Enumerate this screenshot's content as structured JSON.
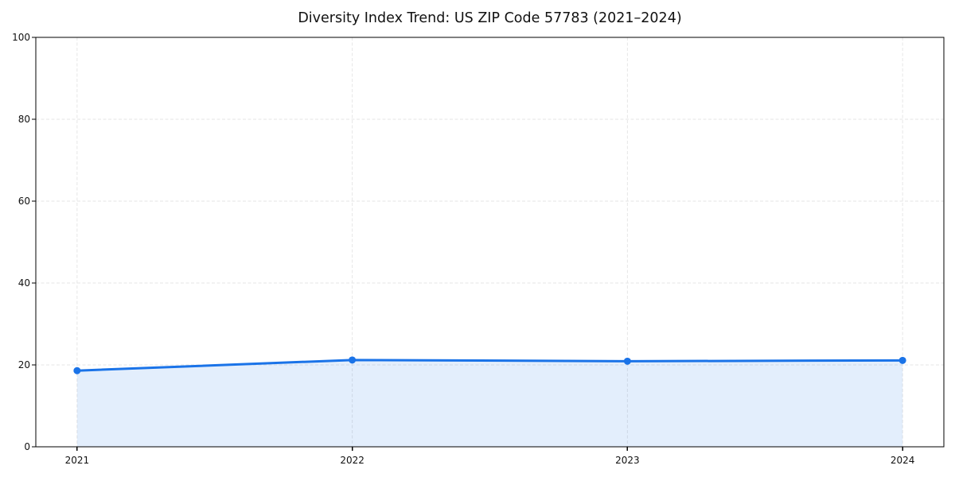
{
  "title": "Diversity Index Trend: US ZIP Code 57783 (2021–2024)",
  "chart_data": {
    "type": "line",
    "subtype": "line-with-area-fill-and-markers",
    "title": "Diversity Index Trend: US ZIP Code 57783 (2021–2024)",
    "xlabel": "",
    "ylabel": "",
    "x": [
      2021,
      2022,
      2023,
      2024
    ],
    "series": [
      {
        "name": "Diversity Index",
        "values": [
          18.6,
          21.2,
          20.9,
          21.1
        ]
      }
    ],
    "xlim": [
      2020.85,
      2024.15
    ],
    "ylim": [
      0,
      100
    ],
    "xticks": [
      2021,
      2022,
      2023,
      2024
    ],
    "xticklabels": [
      "2021",
      "2022",
      "2023",
      "2024"
    ],
    "yticks": [
      0,
      20,
      40,
      60,
      80,
      100
    ],
    "yticklabels": [
      "0",
      "20",
      "40",
      "60",
      "80",
      "100"
    ],
    "grid": "dashed-both-axes",
    "legend": "none",
    "colors": {
      "line": "#1a73e8",
      "marker": "#1a73e8",
      "area_fill": "rgba(26,115,232,0.12)",
      "grid": "#e6e6e6",
      "spine": "#000000",
      "tick_label": "#111111",
      "title": "#111111",
      "background": "#ffffff"
    }
  }
}
